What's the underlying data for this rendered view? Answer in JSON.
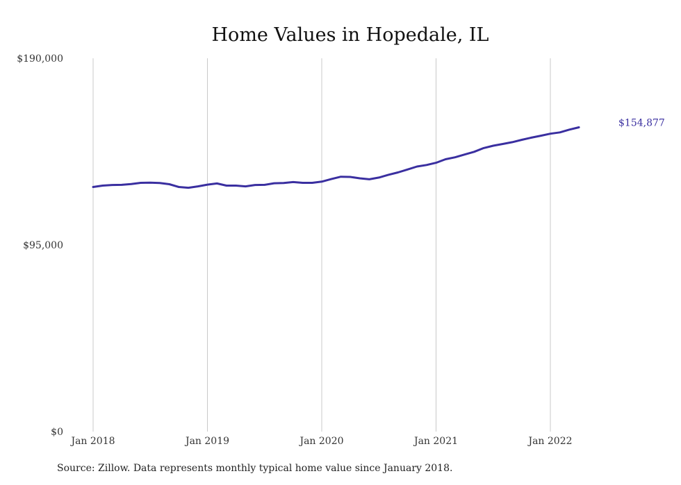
{
  "chart_data": {
    "type": "line",
    "title": "Home Values in Hopedale, IL",
    "xlabel": "",
    "ylabel": "",
    "ylim": [
      0,
      190000
    ],
    "y_ticks": [
      "$0",
      "$95,000",
      "$190,000"
    ],
    "y_tick_values": [
      0,
      95000,
      190000
    ],
    "x_ticks": [
      "Jan 2018",
      "Jan 2019",
      "Jan 2020",
      "Jan 2021",
      "Jan 2022"
    ],
    "x_tick_months": [
      0,
      12,
      24,
      36,
      48
    ],
    "grid": "vertical",
    "series": [
      {
        "color": "#3a2fa0",
        "x_start": "2018-01",
        "values": [
          124500,
          125200,
          125500,
          125600,
          126000,
          126600,
          126700,
          126500,
          125900,
          124500,
          124100,
          124800,
          125700,
          126300,
          125200,
          125200,
          124800,
          125500,
          125600,
          126400,
          126500,
          127000,
          126600,
          126600,
          127200,
          128500,
          129700,
          129600,
          128900,
          128400,
          129300,
          130700,
          131900,
          133400,
          134900,
          135700,
          136800,
          138600,
          139600,
          141000,
          142400,
          144300,
          145500,
          146400,
          147300,
          148500,
          149600,
          150600,
          151600,
          152300,
          153700,
          154877
        ],
        "end_label": "$154,877"
      }
    ],
    "source_note": "Source: Zillow. Data represents monthly typical home value since January 2018."
  }
}
